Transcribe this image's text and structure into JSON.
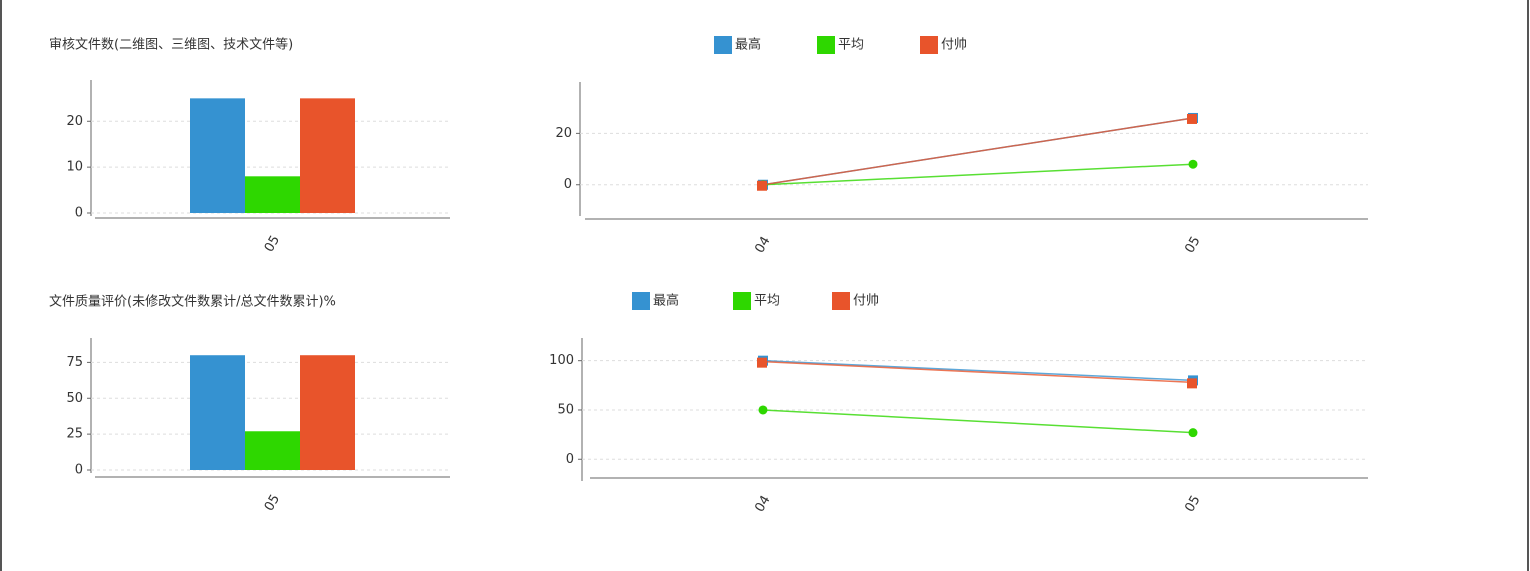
{
  "chart_data": [
    {
      "type": "bar",
      "title": "审核文件数(二维图、三维图、技术文件等)",
      "categories": [
        "05"
      ],
      "series": [
        {
          "color": "#3592d1",
          "values": [
            25
          ]
        },
        {
          "color": "#2ed700",
          "values": [
            8
          ]
        },
        {
          "color": "#e8542b",
          "values": [
            25
          ]
        }
      ],
      "ylim": [
        0,
        29
      ],
      "yticks": [
        0,
        10,
        20
      ],
      "grid": true
    },
    {
      "type": "line",
      "categories": [
        "04",
        "05"
      ],
      "series": [
        {
          "name": "最高",
          "color": "#3592d1",
          "values": [
            0,
            26
          ]
        },
        {
          "name": "平均",
          "color": "#2ed700",
          "values": [
            0,
            8
          ]
        },
        {
          "name": "付帅",
          "color": "#e8542b",
          "values": [
            0,
            26
          ]
        }
      ],
      "ylim": [
        -11,
        40
      ],
      "yticks": [
        0,
        20
      ],
      "grid": true
    },
    {
      "type": "bar",
      "title": "文件质量评价(未修改文件数累计/总文件数累计)%",
      "categories": [
        "05"
      ],
      "series": [
        {
          "color": "#3592d1",
          "values": [
            80
          ]
        },
        {
          "color": "#2ed700",
          "values": [
            27
          ]
        },
        {
          "color": "#e8542b",
          "values": [
            80
          ]
        }
      ],
      "ylim": [
        0,
        92
      ],
      "yticks": [
        0,
        25,
        50,
        75
      ],
      "grid": true
    },
    {
      "type": "line",
      "categories": [
        "04",
        "05"
      ],
      "series": [
        {
          "name": "最高",
          "color": "#3592d1",
          "values": [
            100,
            80
          ]
        },
        {
          "name": "平均",
          "color": "#2ed700",
          "values": [
            50,
            27
          ]
        },
        {
          "name": "付帅",
          "color": "#e8542b",
          "values": [
            99,
            78
          ]
        }
      ],
      "ylim": [
        -19,
        123
      ],
      "yticks": [
        0,
        50,
        100
      ],
      "grid": true
    }
  ]
}
